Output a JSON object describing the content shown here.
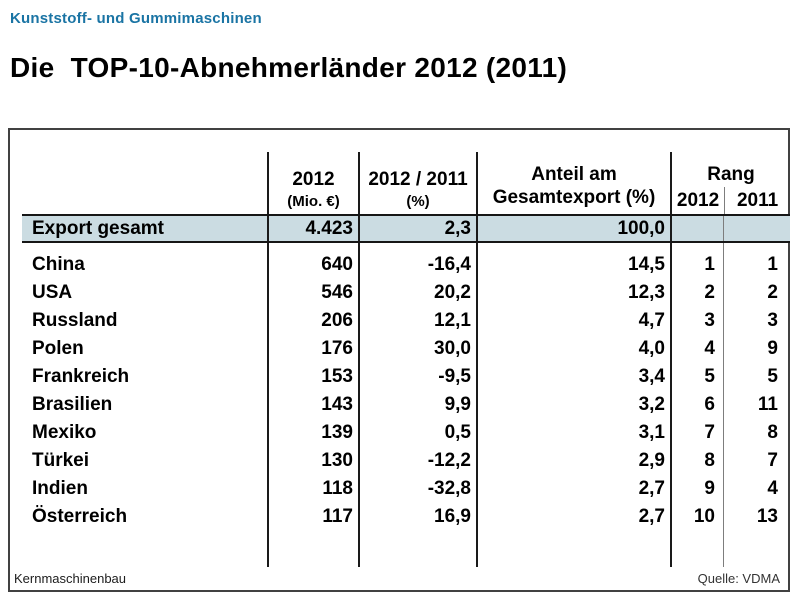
{
  "page": {
    "eyebrow": "Kunststoff- und Gummimaschinen",
    "title": "Die  TOP-10-Abnehmerländer 2012 (2011)",
    "footer_left": "Kernmaschinenbau",
    "footer_right": "Quelle: VDMA"
  },
  "colors": {
    "eyebrow_blue": "#1a74a4",
    "highlight_row_bg": "#cbdce2",
    "rule_dark": "#1a1a1a",
    "rule_thin_gray": "#7d7d7d",
    "box_border": "#414141"
  },
  "table": {
    "header": {
      "col_value": {
        "line1": "2012",
        "line2": "(Mio. €)"
      },
      "col_change": {
        "line1": "2012 / 2011",
        "line2": "(%)"
      },
      "col_share": {
        "line1": "Anteil am",
        "line2": "Gesamtexport (%)"
      },
      "rang": {
        "label": "Rang",
        "sub_2012": "2012",
        "sub_2011": "2011"
      }
    },
    "total_row": {
      "label": "Export gesamt",
      "value_2012": "4.423",
      "change_pct": "2,3",
      "share_pct": "100,0",
      "rank_2012": "",
      "rank_2011": ""
    },
    "rows": [
      {
        "country": "China",
        "value_2012": "640",
        "change_pct": "-16,4",
        "share_pct": "14,5",
        "rank_2012": "1",
        "rank_2011": "1"
      },
      {
        "country": "USA",
        "value_2012": "546",
        "change_pct": "20,2",
        "share_pct": "12,3",
        "rank_2012": "2",
        "rank_2011": "2"
      },
      {
        "country": "Russland",
        "value_2012": "206",
        "change_pct": "12,1",
        "share_pct": "4,7",
        "rank_2012": "3",
        "rank_2011": "3"
      },
      {
        "country": "Polen",
        "value_2012": "176",
        "change_pct": "30,0",
        "share_pct": "4,0",
        "rank_2012": "4",
        "rank_2011": "9"
      },
      {
        "country": "Frankreich",
        "value_2012": "153",
        "change_pct": "-9,5",
        "share_pct": "3,4",
        "rank_2012": "5",
        "rank_2011": "5"
      },
      {
        "country": "Brasilien",
        "value_2012": "143",
        "change_pct": "9,9",
        "share_pct": "3,2",
        "rank_2012": "6",
        "rank_2011": "11"
      },
      {
        "country": "Mexiko",
        "value_2012": "139",
        "change_pct": "0,5",
        "share_pct": "3,1",
        "rank_2012": "7",
        "rank_2011": "8"
      },
      {
        "country": "Türkei",
        "value_2012": "130",
        "change_pct": "-12,2",
        "share_pct": "2,9",
        "rank_2012": "8",
        "rank_2011": "7"
      },
      {
        "country": "Indien",
        "value_2012": "118",
        "change_pct": "-32,8",
        "share_pct": "2,7",
        "rank_2012": "9",
        "rank_2011": "4"
      },
      {
        "country": "Österreich",
        "value_2012": "117",
        "change_pct": "16,9",
        "share_pct": "2,7",
        "rank_2012": "10",
        "rank_2011": "13"
      }
    ]
  }
}
